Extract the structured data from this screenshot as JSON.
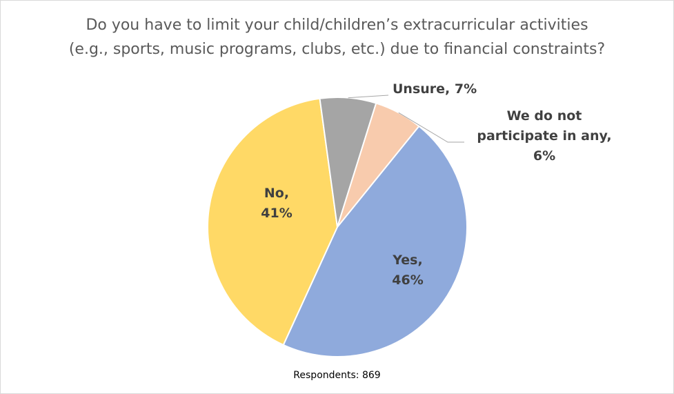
{
  "chart_data": {
    "type": "pie",
    "title": [
      "Do you have to limit your child/children’s extracurricular activities",
      "(e.g., sports, music programs, clubs, etc.) due to financial constraints?"
    ],
    "slices": [
      {
        "id": "yes",
        "label_lines": [
          "Yes,",
          "46%"
        ],
        "value": 46,
        "color": "#8faadc"
      },
      {
        "id": "no",
        "label_lines": [
          "No,",
          "41%"
        ],
        "value": 41,
        "color": "#ffd966"
      },
      {
        "id": "unsure",
        "label_lines": [
          "Unsure, 7%"
        ],
        "value": 7,
        "color": "#a5a5a5"
      },
      {
        "id": "do-not-participate",
        "label_lines": [
          "We do not",
          "participate in any,",
          "6%"
        ],
        "value": 6,
        "color": "#f8cbad"
      }
    ],
    "start_angle_deg": 39,
    "direction": "clockwise",
    "note": "Respondents: 869"
  }
}
